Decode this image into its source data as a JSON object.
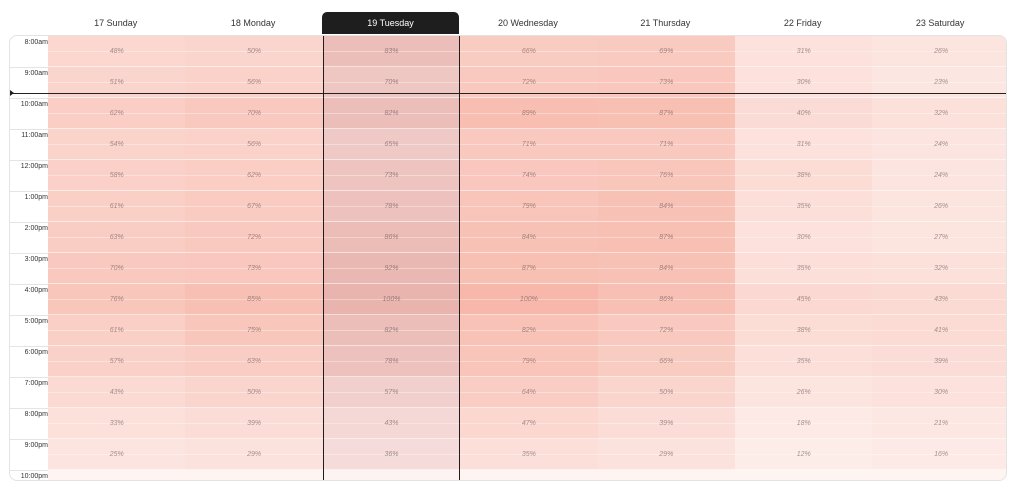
{
  "days": [
    {
      "label": "17 Sunday",
      "selected": false
    },
    {
      "label": "18 Monday",
      "selected": false
    },
    {
      "label": "19 Tuesday",
      "selected": true
    },
    {
      "label": "20 Wednesday",
      "selected": false
    },
    {
      "label": "21 Thursday",
      "selected": false
    },
    {
      "label": "22 Friday",
      "selected": false
    },
    {
      "label": "23 Saturday",
      "selected": false
    }
  ],
  "times": [
    "8:00am",
    "9:00am",
    "10:00am",
    "11:00am",
    "12:00pm",
    "1:00pm",
    "2:00pm",
    "3:00pm",
    "4:00pm",
    "5:00pm",
    "6:00pm",
    "7:00pm",
    "8:00pm",
    "9:00pm",
    "10:00pm"
  ],
  "grid": [
    [
      "48%",
      "50%",
      "83%",
      "66%",
      "69%",
      "31%",
      "26%"
    ],
    [
      "51%",
      "56%",
      "70%",
      "72%",
      "73%",
      "30%",
      "23%"
    ],
    [
      "62%",
      "70%",
      "82%",
      "89%",
      "87%",
      "40%",
      "32%"
    ],
    [
      "54%",
      "56%",
      "65%",
      "71%",
      "71%",
      "31%",
      "24%"
    ],
    [
      "58%",
      "62%",
      "73%",
      "74%",
      "76%",
      "38%",
      "24%"
    ],
    [
      "61%",
      "67%",
      "78%",
      "79%",
      "84%",
      "35%",
      "26%"
    ],
    [
      "63%",
      "72%",
      "86%",
      "84%",
      "87%",
      "30%",
      "27%"
    ],
    [
      "70%",
      "73%",
      "92%",
      "87%",
      "84%",
      "35%",
      "32%"
    ],
    [
      "76%",
      "85%",
      "100%",
      "100%",
      "86%",
      "45%",
      "43%"
    ],
    [
      "61%",
      "75%",
      "82%",
      "82%",
      "72%",
      "38%",
      "41%"
    ],
    [
      "57%",
      "63%",
      "78%",
      "79%",
      "66%",
      "35%",
      "39%"
    ],
    [
      "43%",
      "50%",
      "57%",
      "64%",
      "50%",
      "26%",
      "30%"
    ],
    [
      "33%",
      "39%",
      "43%",
      "47%",
      "39%",
      "18%",
      "21%"
    ],
    [
      "25%",
      "29%",
      "36%",
      "35%",
      "29%",
      "12%",
      "16%"
    ]
  ],
  "colors": {
    "cell": "#f3907c",
    "selected_cell": "#dd8a82",
    "selected_border": "#1e1e1e",
    "now_line": "#222222"
  },
  "current_time_marker": {
    "label": "current time",
    "at": "9:50am"
  }
}
